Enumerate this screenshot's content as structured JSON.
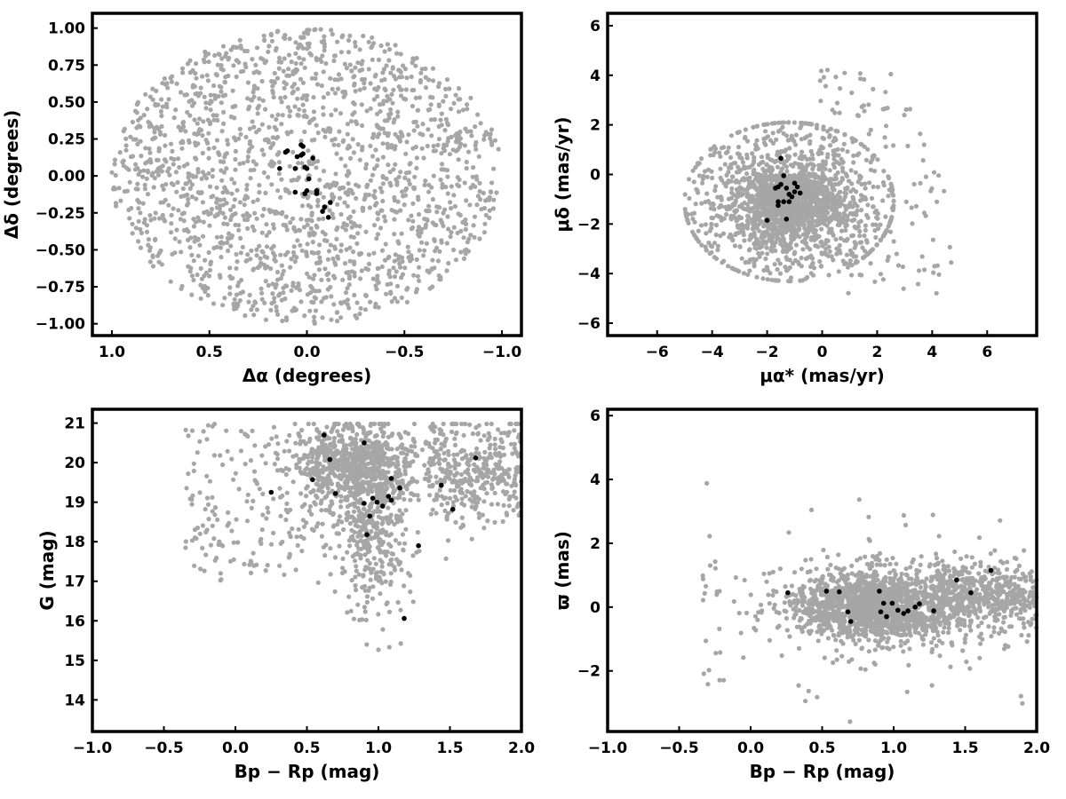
{
  "figure": {
    "background": "#ffffff",
    "field_color": "#a6a6a6",
    "member_color": "#000000"
  },
  "chart_data": [
    {
      "type": "scatter",
      "id": "sky",
      "xlabel": "Δα (degrees)",
      "ylabel": "Δδ (degrees)",
      "xlim": [
        1.1,
        -1.1
      ],
      "ylim": [
        -1.08,
        1.1
      ],
      "x_inverted": true,
      "xticks": [
        1.0,
        0.5,
        0.0,
        -0.5,
        -1.0
      ],
      "xtick_labels": [
        "1.0",
        "0.5",
        "0.0",
        "−0.5",
        "−1.0"
      ],
      "yticks": [
        1.0,
        0.75,
        0.5,
        0.25,
        0.0,
        -0.25,
        -0.5,
        -0.75,
        -1.0
      ],
      "ytick_labels": [
        "1.00",
        "0.75",
        "0.50",
        "0.25",
        "0.00",
        "−0.25",
        "−0.50",
        "−0.75",
        "−1.00"
      ],
      "grid": false,
      "field_distribution": {
        "shape": "disk",
        "center": [
          0.0,
          0.0
        ],
        "radius": [
          1.0,
          1.0
        ],
        "count": 1800
      },
      "members": [
        [
          0.02,
          0.2
        ],
        [
          0.03,
          0.21
        ],
        [
          0.1,
          0.17
        ],
        [
          0.11,
          0.16
        ],
        [
          0.14,
          0.05
        ],
        [
          0.06,
          0.05
        ],
        [
          0.01,
          0.06
        ],
        [
          0.0,
          0.05
        ],
        [
          0.03,
          0.14
        ],
        [
          0.05,
          0.13
        ],
        [
          0.02,
          0.15
        ],
        [
          -0.03,
          0.12
        ],
        [
          -0.01,
          -0.02
        ],
        [
          0.0,
          -0.1
        ],
        [
          0.01,
          -0.12
        ],
        [
          0.06,
          -0.11
        ],
        [
          -0.05,
          -0.1
        ],
        [
          -0.05,
          -0.12
        ],
        [
          -0.09,
          -0.21
        ],
        [
          -0.08,
          -0.24
        ],
        [
          -0.12,
          -0.18
        ],
        [
          -0.11,
          -0.28
        ]
      ]
    },
    {
      "type": "scatter",
      "id": "proper-motion",
      "xlabel": "μα* (mas/yr)",
      "ylabel": "μδ (mas/yr)",
      "xlim": [
        -7.8,
        7.8
      ],
      "ylim": [
        -6.5,
        6.5
      ],
      "xticks": [
        -6,
        -4,
        -2,
        0,
        2,
        4,
        6
      ],
      "xtick_labels": [
        "−6",
        "−4",
        "−2",
        "0",
        "2",
        "4",
        "6"
      ],
      "yticks": [
        6,
        4,
        2,
        0,
        -2,
        -4,
        -6
      ],
      "ytick_labels": [
        "6",
        "4",
        "2",
        "0",
        "−2",
        "−4",
        "−6"
      ],
      "grid": false,
      "field_distribution": {
        "shape": "disk",
        "center": [
          -1.2,
          -1.1
        ],
        "radius": [
          3.8,
          3.2
        ],
        "count": 2200,
        "concentrated": true
      },
      "members": [
        [
          -1.5,
          0.65
        ],
        [
          -1.4,
          -0.05
        ],
        [
          -1.6,
          -0.5
        ],
        [
          -1.5,
          -0.4
        ],
        [
          -1.3,
          -0.55
        ],
        [
          -1.7,
          -0.55
        ],
        [
          -1.0,
          -0.35
        ],
        [
          -0.9,
          -0.5
        ],
        [
          -0.8,
          -0.75
        ],
        [
          -1.0,
          -0.7
        ],
        [
          -1.2,
          -0.8
        ],
        [
          -1.6,
          -1.1
        ],
        [
          -1.6,
          -1.25
        ],
        [
          -1.4,
          -1.1
        ],
        [
          -1.2,
          -1.1
        ],
        [
          -1.1,
          -0.9
        ],
        [
          -1.3,
          -1.8
        ],
        [
          -2.0,
          -1.85
        ]
      ]
    },
    {
      "type": "scatter",
      "id": "cmd",
      "xlabel": "Bp − Rp (mag)",
      "ylabel": "G (mag)",
      "xlim": [
        -1.0,
        2.0
      ],
      "ylim": [
        13.2,
        21.35
      ],
      "y_inverted": false,
      "xticks": [
        -1.0,
        -0.5,
        0.0,
        0.5,
        1.0,
        1.5,
        2.0
      ],
      "xtick_labels": [
        "−1.0",
        "−0.5",
        "0.0",
        "0.5",
        "1.0",
        "1.5",
        "2.0"
      ],
      "yticks": [
        21,
        20,
        19,
        18,
        17,
        16,
        15,
        14
      ],
      "ytick_labels": [
        "21",
        "20",
        "19",
        "18",
        "17",
        "16",
        "15",
        "14"
      ],
      "grid": false,
      "field_distribution": {
        "shape": "cmd",
        "count": 1700
      },
      "members": [
        [
          0.25,
          19.25
        ],
        [
          0.54,
          19.57
        ],
        [
          0.62,
          20.7
        ],
        [
          0.66,
          20.08
        ],
        [
          0.7,
          19.22
        ],
        [
          0.9,
          20.5
        ],
        [
          0.9,
          18.97
        ],
        [
          0.92,
          18.18
        ],
        [
          0.94,
          18.65
        ],
        [
          0.96,
          19.1
        ],
        [
          0.99,
          19.0
        ],
        [
          1.03,
          18.9
        ],
        [
          1.07,
          19.15
        ],
        [
          1.09,
          19.6
        ],
        [
          1.09,
          19.05
        ],
        [
          1.15,
          19.36
        ],
        [
          1.18,
          16.06
        ],
        [
          1.28,
          17.9
        ],
        [
          1.44,
          19.43
        ],
        [
          1.52,
          18.82
        ],
        [
          1.68,
          20.12
        ]
      ]
    },
    {
      "type": "scatter",
      "id": "parallax",
      "xlabel": "Bp − Rp (mag)",
      "ylabel": "ϖ (mas)",
      "xlim": [
        -1.0,
        2.0
      ],
      "ylim": [
        -3.9,
        6.2
      ],
      "xticks": [
        -1.0,
        -0.5,
        0.0,
        0.5,
        1.0,
        1.5,
        2.0
      ],
      "xtick_labels": [
        "−1.0",
        "−0.5",
        "0.0",
        "0.5",
        "1.0",
        "1.5",
        "2.0"
      ],
      "yticks": [
        6,
        4,
        2,
        0,
        -2
      ],
      "ytick_labels": [
        "6",
        "4",
        "2",
        "0",
        "−2"
      ],
      "grid": false,
      "field_distribution": {
        "shape": "band",
        "count": 2200
      },
      "members": [
        [
          0.26,
          0.45
        ],
        [
          0.53,
          0.5
        ],
        [
          0.62,
          0.48
        ],
        [
          0.68,
          -0.15
        ],
        [
          0.7,
          -0.45
        ],
        [
          0.9,
          0.5
        ],
        [
          0.91,
          -0.15
        ],
        [
          0.93,
          0.12
        ],
        [
          0.95,
          -0.3
        ],
        [
          0.99,
          0.12
        ],
        [
          1.03,
          -0.1
        ],
        [
          1.07,
          -0.2
        ],
        [
          1.1,
          -0.12
        ],
        [
          1.15,
          0.0
        ],
        [
          1.18,
          0.1
        ],
        [
          1.28,
          -0.12
        ],
        [
          1.44,
          0.85
        ],
        [
          1.54,
          0.45
        ],
        [
          1.68,
          1.15
        ]
      ]
    }
  ]
}
